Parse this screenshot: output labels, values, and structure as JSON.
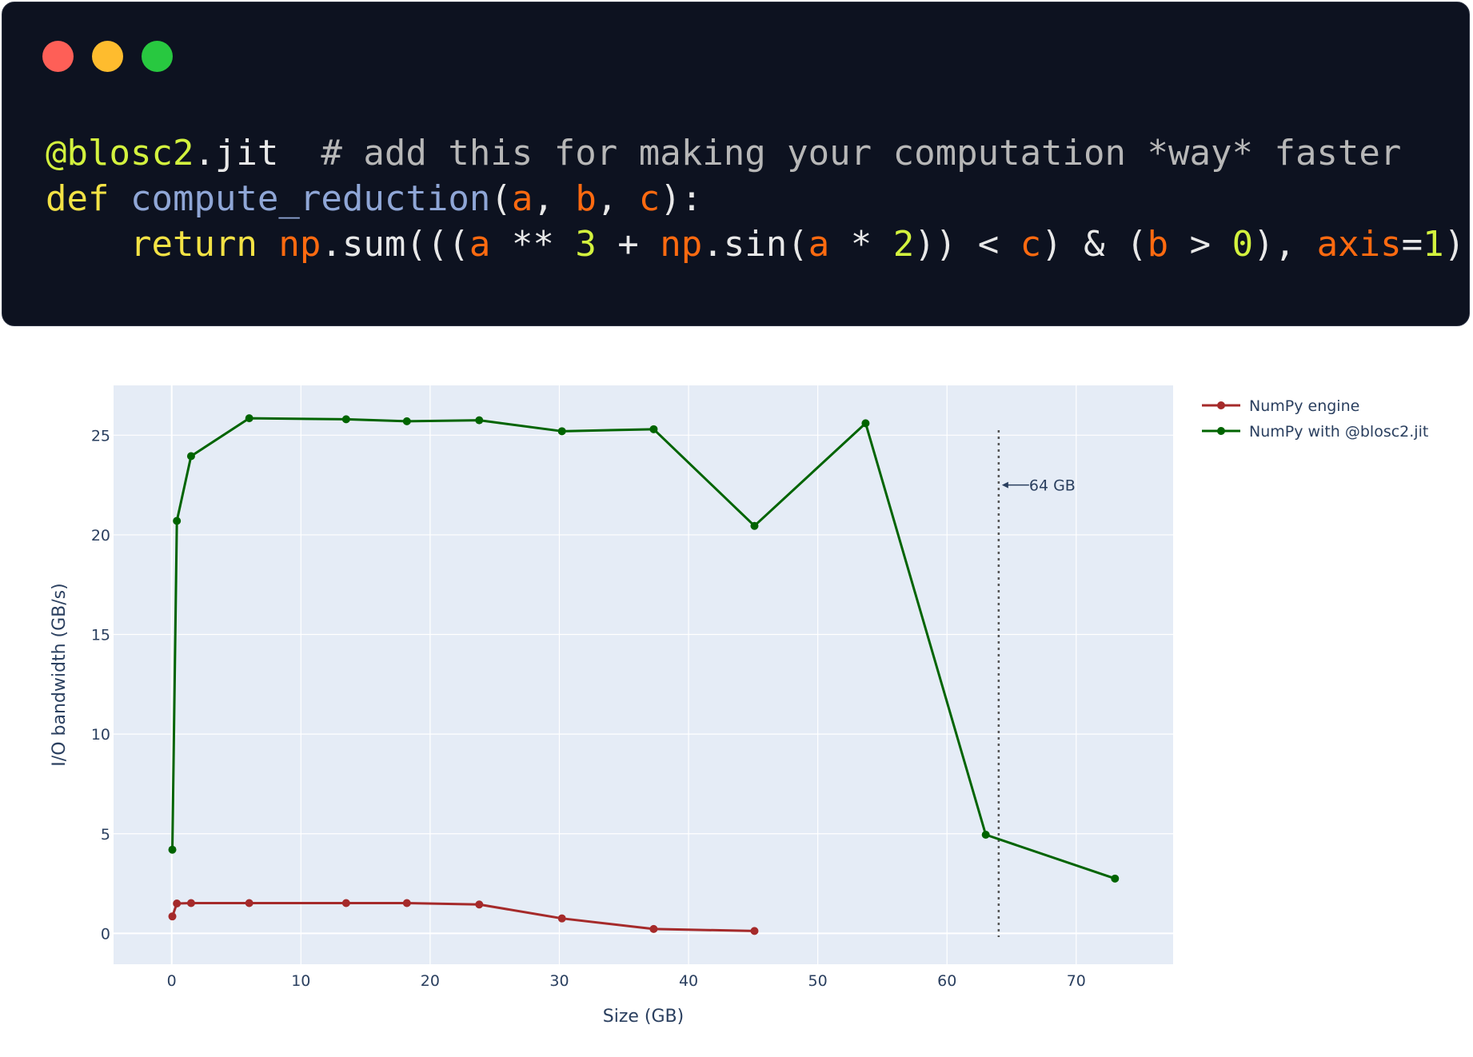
{
  "window": {
    "buttons": [
      "close",
      "minimize",
      "zoom"
    ]
  },
  "code": {
    "lines": [
      [
        {
          "t": "@blosc2",
          "c": "dec"
        },
        {
          "t": ".jit  ",
          "c": "pun"
        },
        {
          "t": "# add this for making your computation *way* faster",
          "c": "cmt"
        }
      ],
      [
        {
          "t": "def",
          "c": "kw"
        },
        {
          "t": " ",
          "c": "pun"
        },
        {
          "t": "compute_reduction",
          "c": "fn"
        },
        {
          "t": "(",
          "c": "pun"
        },
        {
          "t": "a",
          "c": "var"
        },
        {
          "t": ", ",
          "c": "pun"
        },
        {
          "t": "b",
          "c": "var"
        },
        {
          "t": ", ",
          "c": "pun"
        },
        {
          "t": "c",
          "c": "var"
        },
        {
          "t": "):",
          "c": "pun"
        }
      ],
      [
        {
          "t": "    ",
          "c": "pun"
        },
        {
          "t": "return",
          "c": "kw"
        },
        {
          "t": " ",
          "c": "pun"
        },
        {
          "t": "np",
          "c": "var"
        },
        {
          "t": ".sum(((",
          "c": "pun"
        },
        {
          "t": "a",
          "c": "var"
        },
        {
          "t": " ** ",
          "c": "pun"
        },
        {
          "t": "3",
          "c": "num"
        },
        {
          "t": " + ",
          "c": "pun"
        },
        {
          "t": "np",
          "c": "var"
        },
        {
          "t": ".sin(",
          "c": "pun"
        },
        {
          "t": "a",
          "c": "var"
        },
        {
          "t": " * ",
          "c": "pun"
        },
        {
          "t": "2",
          "c": "num"
        },
        {
          "t": ")) < ",
          "c": "pun"
        },
        {
          "t": "c",
          "c": "var"
        },
        {
          "t": ") & (",
          "c": "pun"
        },
        {
          "t": "b",
          "c": "var"
        },
        {
          "t": " > ",
          "c": "pun"
        },
        {
          "t": "0",
          "c": "num"
        },
        {
          "t": "), ",
          "c": "pun"
        },
        {
          "t": "axis",
          "c": "var"
        },
        {
          "t": "=",
          "c": "pun"
        },
        {
          "t": "1",
          "c": "num"
        },
        {
          "t": ")",
          "c": "pun"
        }
      ]
    ]
  },
  "chart_data": {
    "type": "line",
    "title": "",
    "xlabel": "Size (GB)",
    "ylabel": "I/O bandwidth (GB/s)",
    "xlim": [
      -4.5,
      77.5
    ],
    "ylim": [
      -1.55,
      27.5
    ],
    "xticks": [
      0,
      10,
      20,
      30,
      40,
      50,
      60,
      70
    ],
    "yticks": [
      0,
      5,
      10,
      15,
      20,
      25
    ],
    "grid": true,
    "legend": "right",
    "colors": {
      "plot_bg": "#e5ecf6",
      "grid": "#ffffff",
      "text": "#2a3f5f"
    },
    "series": [
      {
        "name": "NumPy engine",
        "color": "#a52a2a",
        "x": [
          0.05,
          0.4,
          1.5,
          6.0,
          13.5,
          18.2,
          23.8,
          30.2,
          37.3,
          45.1
        ],
        "y": [
          0.85,
          1.5,
          1.52,
          1.52,
          1.52,
          1.52,
          1.45,
          0.75,
          0.22,
          0.12
        ]
      },
      {
        "name": "NumPy with @blosc2.jit",
        "color": "#006400",
        "x": [
          0.05,
          0.4,
          1.5,
          6.0,
          13.5,
          18.2,
          23.8,
          30.2,
          37.3,
          45.1,
          53.7,
          63.0,
          73.0
        ],
        "y": [
          4.2,
          20.7,
          23.95,
          25.85,
          25.8,
          25.7,
          25.75,
          25.2,
          25.3,
          20.45,
          25.6,
          4.95,
          2.75
        ]
      }
    ],
    "annotations": [
      {
        "type": "vline",
        "x": 64,
        "style": "dotted",
        "color": "#555555"
      },
      {
        "type": "arrow-label",
        "x": 64,
        "y": 22.5,
        "text": "64 GB"
      }
    ]
  }
}
